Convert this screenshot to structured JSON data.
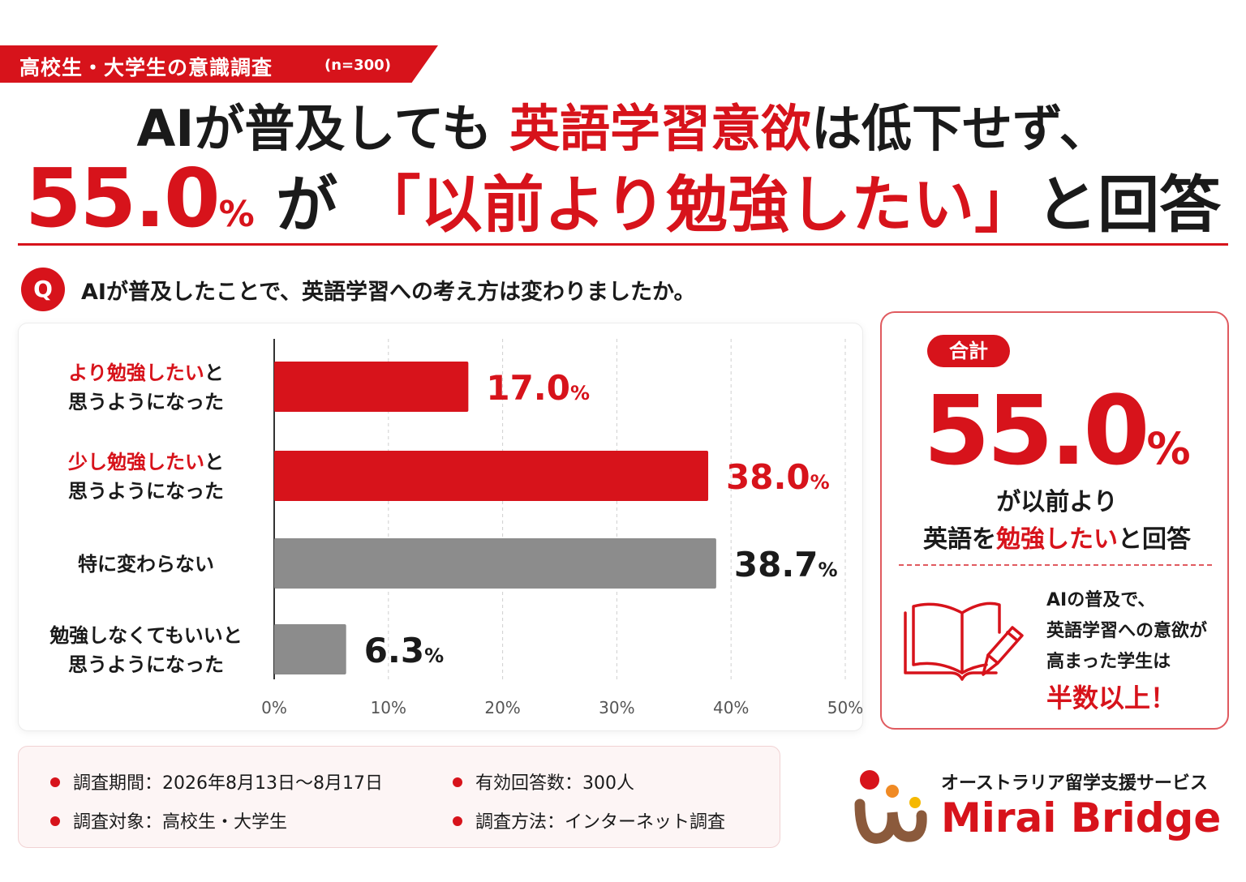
{
  "header": {
    "tag_main": "高校生・大学生の意識調査",
    "tag_n": "(n=300)",
    "title1_a": "AIが普及しても",
    "title1_b": "英語学習意欲",
    "title1_c": "は低下せず、",
    "title2_num": "55.0",
    "title2_pct": "%",
    "title2_a": "が",
    "title2_b": "「以前より勉強したい」",
    "title2_c": "と回答"
  },
  "question": {
    "icon_label": "Q",
    "text": "AIが普及したことで、英語学習への考え方は変わりましたか。"
  },
  "chart_data": {
    "type": "bar",
    "orientation": "horizontal",
    "categories": [
      [
        "より勉強したい",
        "と",
        "思うようになった"
      ],
      [
        "少し勉強したい",
        "と",
        "思うようになった"
      ],
      [
        "特に変わらない"
      ],
      [
        "勉強しなくてもいいと",
        "",
        "思うようになった"
      ]
    ],
    "values": [
      17.0,
      38.0,
      38.7,
      6.3
    ],
    "value_labels": [
      "17.0",
      "38.0",
      "38.7",
      "6.3"
    ],
    "value_unit": "%",
    "colors": [
      "#d7131b",
      "#d7131b",
      "#8c8c8c",
      "#8c8c8c"
    ],
    "label_colors": [
      "#d7131b",
      "#d7131b",
      "#1a1a1a",
      "#1a1a1a"
    ],
    "xlim": [
      0,
      50
    ],
    "xticks": [
      "0%",
      "10%",
      "20%",
      "30%",
      "40%",
      "50%"
    ],
    "grid": true
  },
  "summary": {
    "badge": "合計",
    "number": "55.0",
    "pct": "%",
    "caption1": "が以前より",
    "caption2_a": "英語を",
    "caption2_b": "勉強したい",
    "caption2_c": "と回答",
    "note1": "AIの普及で、",
    "note2": "英語学習への意欲が",
    "note3": "高まった学生は",
    "note4": "半数以上！"
  },
  "survey_info": {
    "period": "調査期間：2026年8月13日〜8月17日",
    "responses": "有効回答数：300人",
    "target": "調査対象：高校生・大学生",
    "method": "調査方法：インターネット調査"
  },
  "brand": {
    "subtitle": "オーストラリア留学支援サービス",
    "name": "Mirai Bridge",
    "accent": "#d7131b",
    "logo_colors": [
      "#d7131b",
      "#f08a24",
      "#f5b800",
      "#8b5a3c"
    ]
  }
}
